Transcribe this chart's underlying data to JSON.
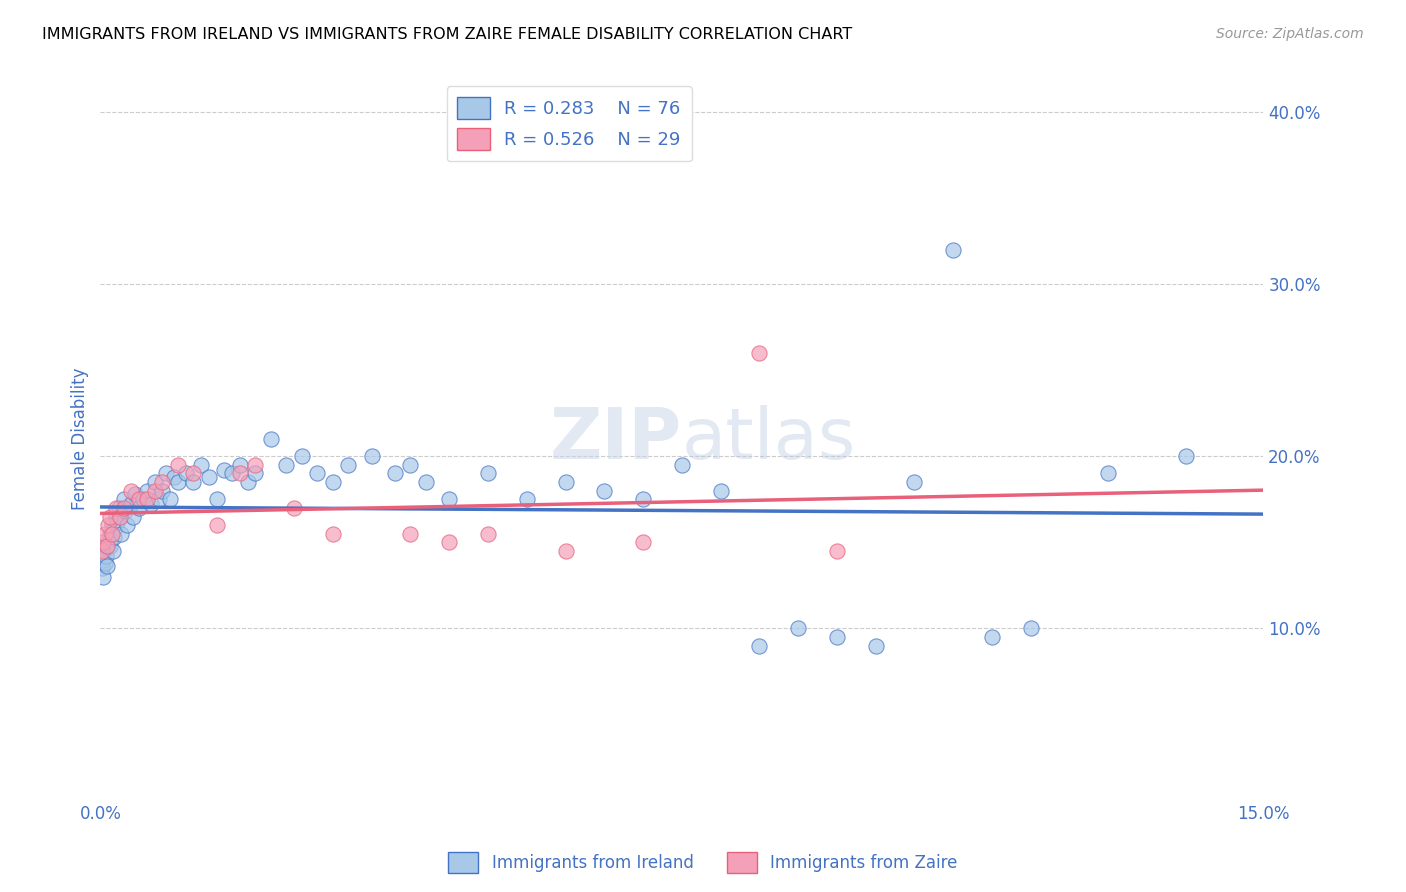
{
  "title": "IMMIGRANTS FROM IRELAND VS IMMIGRANTS FROM ZAIRE FEMALE DISABILITY CORRELATION CHART",
  "source": "Source: ZipAtlas.com",
  "ylabel": "Female Disability",
  "xlim": [
    0.0,
    0.15
  ],
  "ylim": [
    0.0,
    0.42
  ],
  "ireland_color": "#a8c8e8",
  "zaire_color": "#f4a0b8",
  "ireland_line_color": "#4472c4",
  "zaire_line_color": "#e8607a",
  "label_color": "#4472c4",
  "ireland_x": [
    0.0002,
    0.0003,
    0.0004,
    0.0005,
    0.0006,
    0.0007,
    0.0008,
    0.0009,
    0.001,
    0.0012,
    0.0013,
    0.0014,
    0.0015,
    0.0016,
    0.0017,
    0.0018,
    0.002,
    0.0022,
    0.0024,
    0.0026,
    0.003,
    0.0032,
    0.0035,
    0.004,
    0.0042,
    0.0045,
    0.005,
    0.0055,
    0.006,
    0.0065,
    0.007,
    0.0075,
    0.008,
    0.0085,
    0.009,
    0.0095,
    0.01,
    0.011,
    0.012,
    0.013,
    0.014,
    0.015,
    0.016,
    0.017,
    0.018,
    0.019,
    0.02,
    0.022,
    0.024,
    0.026,
    0.028,
    0.03,
    0.032,
    0.035,
    0.038,
    0.04,
    0.042,
    0.045,
    0.05,
    0.055,
    0.06,
    0.065,
    0.07,
    0.075,
    0.08,
    0.085,
    0.09,
    0.095,
    0.1,
    0.105,
    0.11,
    0.115,
    0.12,
    0.13,
    0.14
  ],
  "ireland_y": [
    0.135,
    0.14,
    0.13,
    0.145,
    0.138,
    0.142,
    0.136,
    0.148,
    0.15,
    0.155,
    0.148,
    0.152,
    0.16,
    0.145,
    0.158,
    0.153,
    0.165,
    0.162,
    0.17,
    0.155,
    0.175,
    0.168,
    0.16,
    0.172,
    0.165,
    0.178,
    0.17,
    0.175,
    0.18,
    0.172,
    0.185,
    0.175,
    0.18,
    0.19,
    0.175,
    0.188,
    0.185,
    0.19,
    0.185,
    0.195,
    0.188,
    0.175,
    0.192,
    0.19,
    0.195,
    0.185,
    0.19,
    0.21,
    0.195,
    0.2,
    0.19,
    0.185,
    0.195,
    0.2,
    0.19,
    0.195,
    0.185,
    0.175,
    0.19,
    0.175,
    0.185,
    0.18,
    0.175,
    0.195,
    0.18,
    0.09,
    0.1,
    0.095,
    0.09,
    0.185,
    0.32,
    0.095,
    0.1,
    0.19,
    0.2
  ],
  "zaire_x": [
    0.0002,
    0.0004,
    0.0006,
    0.0008,
    0.001,
    0.0012,
    0.0015,
    0.002,
    0.0025,
    0.003,
    0.004,
    0.005,
    0.006,
    0.007,
    0.008,
    0.01,
    0.012,
    0.015,
    0.018,
    0.02,
    0.025,
    0.03,
    0.04,
    0.045,
    0.05,
    0.06,
    0.07,
    0.085,
    0.095
  ],
  "zaire_y": [
    0.145,
    0.15,
    0.155,
    0.148,
    0.16,
    0.165,
    0.155,
    0.17,
    0.165,
    0.17,
    0.18,
    0.175,
    0.175,
    0.18,
    0.185,
    0.195,
    0.19,
    0.16,
    0.19,
    0.195,
    0.17,
    0.155,
    0.155,
    0.15,
    0.155,
    0.145,
    0.15,
    0.26,
    0.145
  ]
}
